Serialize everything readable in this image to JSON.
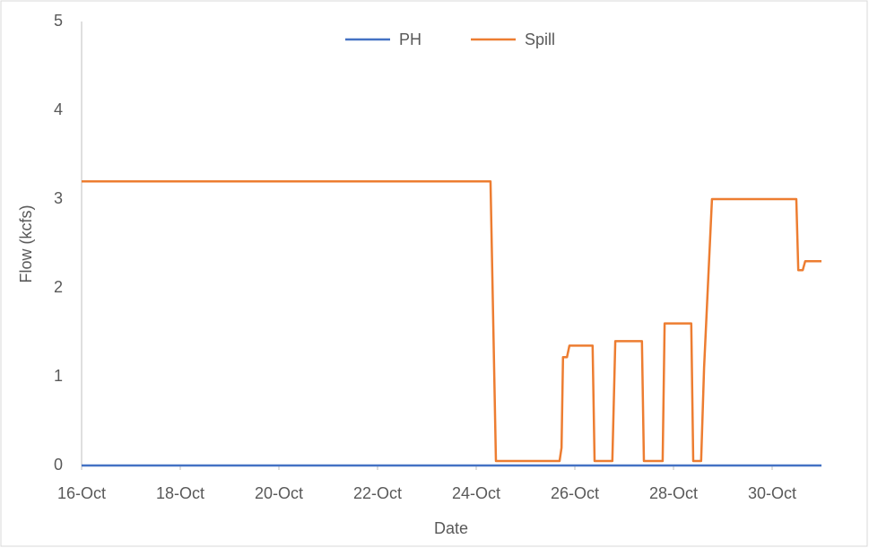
{
  "chart_data": {
    "type": "line",
    "xlabel": "Date",
    "ylabel": "Flow (kcfs)",
    "x": [
      16,
      24.29,
      24.4,
      25.69,
      25.73,
      25.76,
      25.84,
      25.89,
      26.36,
      26.4,
      26.76,
      26.82,
      27.36,
      27.4,
      27.78,
      27.82,
      28.36,
      28.4,
      28.56,
      28.62,
      28.78,
      30.49,
      30.53,
      30.62,
      30.67,
      31
    ],
    "series": [
      {
        "name": "PH",
        "color": "#4472c4",
        "values": [
          0,
          0,
          0,
          0,
          0,
          0,
          0,
          0,
          0,
          0,
          0,
          0,
          0,
          0,
          0,
          0,
          0,
          0,
          0,
          0,
          0,
          0,
          0,
          0,
          0,
          0
        ]
      },
      {
        "name": "Spill",
        "color": "#ed7d31",
        "values": [
          3.2,
          3.2,
          0.05,
          0.05,
          0.2,
          1.22,
          1.22,
          1.35,
          1.35,
          0.05,
          0.05,
          1.4,
          1.4,
          0.05,
          0.05,
          1.6,
          1.6,
          0.05,
          0.05,
          1.1,
          3.0,
          3.0,
          2.2,
          2.2,
          2.3,
          2.3
        ]
      }
    ],
    "xlim": [
      16,
      31
    ],
    "xticks": [
      {
        "value": 16,
        "label": "16-Oct"
      },
      {
        "value": 18,
        "label": "18-Oct"
      },
      {
        "value": 20,
        "label": "20-Oct"
      },
      {
        "value": 22,
        "label": "22-Oct"
      },
      {
        "value": 24,
        "label": "24-Oct"
      },
      {
        "value": 26,
        "label": "26-Oct"
      },
      {
        "value": 28,
        "label": "28-Oct"
      },
      {
        "value": 30,
        "label": "30-Oct"
      }
    ],
    "ylim": [
      0,
      5
    ],
    "yticks": [
      0,
      1,
      2,
      3,
      4,
      5
    ],
    "grid": false,
    "legend": "top"
  }
}
